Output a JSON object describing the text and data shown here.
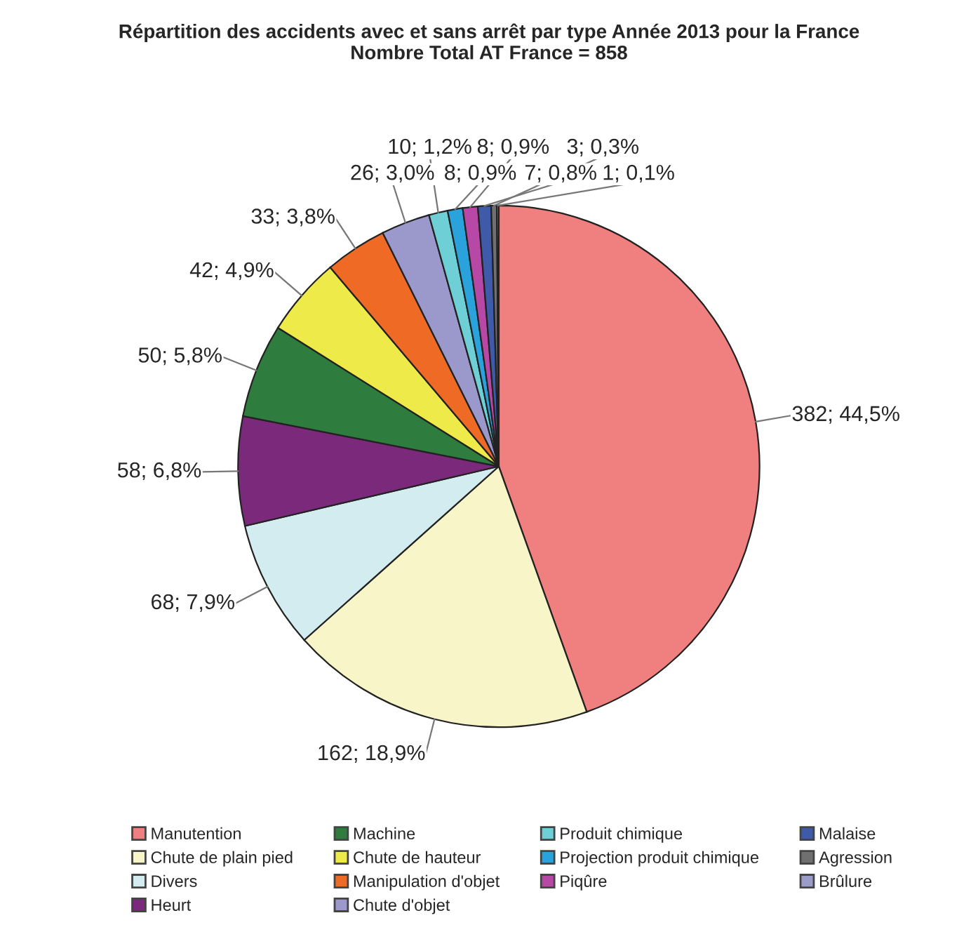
{
  "chart_data": {
    "type": "pie",
    "title": "Répartition des accidents avec et sans arrêt par type Année 2013 pour la France",
    "subtitle": "Nombre Total AT France = 858",
    "categories": [
      "Manutention",
      "Chute de plain pied",
      "Divers",
      "Heurt",
      "Machine",
      "Chute de hauteur",
      "Manipulation d'objet",
      "Chute d'objet",
      "Produit chimique",
      "Projection produit chimique",
      "Piqûre",
      "Malaise",
      "Agression",
      "Brûlure"
    ],
    "values": [
      382,
      162,
      68,
      58,
      50,
      42,
      33,
      26,
      10,
      8,
      8,
      7,
      3,
      1
    ],
    "colors": [
      "#f08080",
      "#f8f5c8",
      "#d3ecf0",
      "#7b2a7b",
      "#2e7d3e",
      "#eeea4a",
      "#ee6a25",
      "#9b98cc",
      "#6ecfd6",
      "#2aa3dc",
      "#b848a6",
      "#3f5aa8",
      "#707070",
      "#9c9cc8"
    ],
    "value_labels": [
      "382; 44,5%",
      "162; 18,9%",
      "68; 7,9%",
      "58; 6,8%",
      "50; 5,8%",
      "42; 4,9%",
      "33; 3,8%",
      "26; 3,0%",
      "10; 1,2%",
      "8; 0,9%",
      "8; 0,9%",
      "7; 0,8%",
      "3; 0,3%",
      "1; 0,1%"
    ],
    "legend": "bottom"
  }
}
